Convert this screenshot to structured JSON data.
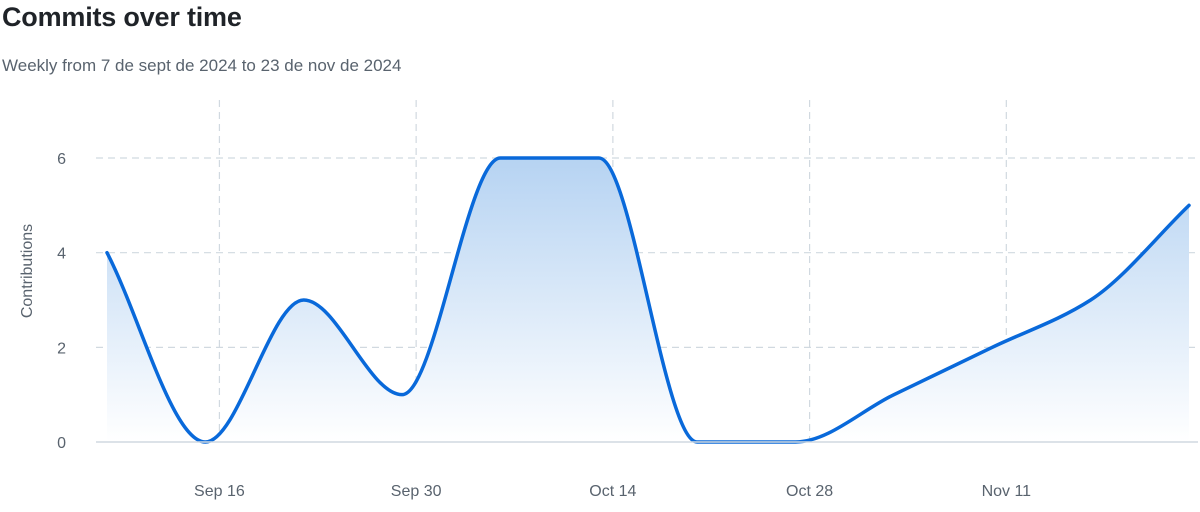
{
  "chart_data": {
    "type": "area",
    "title": "Commits over time",
    "subtitle": "Weekly from 7 de sept de 2024 to 23 de nov de 2024",
    "xlabel": "",
    "ylabel": "Contributions",
    "x": [
      "2024-09-08",
      "2024-09-15",
      "2024-09-22",
      "2024-09-29",
      "2024-10-06",
      "2024-10-13",
      "2024-10-20",
      "2024-10-27",
      "2024-11-03",
      "2024-11-10",
      "2024-11-17",
      "2024-11-24"
    ],
    "series": [
      {
        "values": [
          4,
          0,
          3,
          1,
          6,
          6,
          0,
          0,
          1,
          2,
          3,
          5
        ]
      }
    ],
    "x_ticks": [
      {
        "date": "2024-09-16",
        "label": "Sep 16"
      },
      {
        "date": "2024-09-30",
        "label": "Sep 30"
      },
      {
        "date": "2024-10-14",
        "label": "Oct 14"
      },
      {
        "date": "2024-10-28",
        "label": "Oct 28"
      },
      {
        "date": "2024-11-11",
        "label": "Nov 11"
      }
    ],
    "y_ticks": [
      0,
      2,
      4,
      6
    ],
    "ylim": [
      0,
      7
    ],
    "xlim": [
      "2024-09-08",
      "2024-11-24"
    ],
    "grid": true,
    "legend": "none",
    "colors": {
      "line": "#0969da",
      "area_top": "#b6d3f2",
      "area_bottom": "#ffffff",
      "grid": "#d1d9e0",
      "axis": "#d1d9e0",
      "text": "#59636e",
      "title": "#1f2328"
    }
  }
}
